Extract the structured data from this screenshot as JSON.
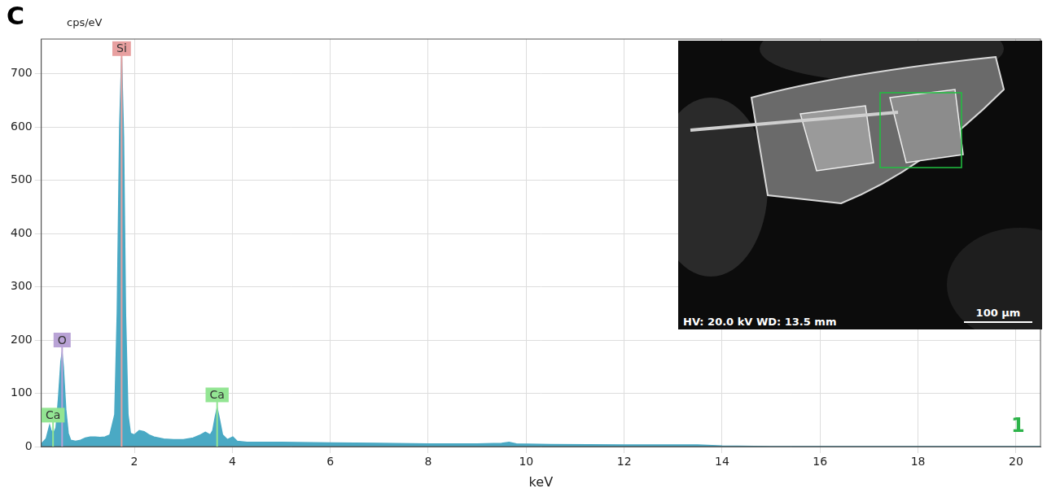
{
  "chart_data": {
    "type": "line",
    "panel_label": "C",
    "y_label": "cps/eV",
    "x_label": "keV",
    "corner_label": "1",
    "color": "#4aa9c4",
    "x": [
      0.1,
      0.2,
      0.27,
      0.3,
      0.35,
      0.4,
      0.45,
      0.5,
      0.525,
      0.55,
      0.6,
      0.65,
      0.7,
      0.8,
      0.9,
      1.0,
      1.1,
      1.2,
      1.3,
      1.4,
      1.5,
      1.6,
      1.65,
      1.7,
      1.74,
      1.78,
      1.82,
      1.87,
      1.92,
      2.0,
      2.1,
      2.2,
      2.3,
      2.4,
      2.6,
      2.8,
      3.0,
      3.2,
      3.35,
      3.45,
      3.55,
      3.6,
      3.65,
      3.69,
      3.73,
      3.8,
      3.9,
      4.01,
      4.1,
      4.3,
      5,
      6,
      7,
      8,
      9,
      9.5,
      9.65,
      9.8,
      10.5,
      12,
      13.5,
      14,
      15,
      20.5
    ],
    "values": [
      5,
      15,
      40,
      30,
      25,
      35,
      90,
      160,
      175,
      150,
      70,
      25,
      12,
      10,
      12,
      16,
      18,
      18,
      17,
      18,
      22,
      60,
      250,
      600,
      730,
      580,
      250,
      60,
      25,
      22,
      30,
      28,
      22,
      18,
      14,
      13,
      13,
      16,
      22,
      27,
      22,
      30,
      55,
      72,
      55,
      22,
      13,
      18,
      10,
      8,
      8,
      7,
      6,
      5,
      5,
      6,
      8,
      5,
      4,
      3,
      3,
      1,
      0,
      0
    ],
    "xlim": [
      0.1,
      20.5
    ],
    "xticks": [
      2,
      4,
      6,
      8,
      10,
      12,
      14,
      16,
      18,
      20
    ],
    "ylim": [
      0,
      765
    ],
    "yticks": [
      0,
      100,
      200,
      300,
      400,
      500,
      600,
      700
    ],
    "grid": true,
    "annotations": [
      {
        "text": "Si",
        "x": 1.74,
        "y": 747,
        "color": "#e8a0a0"
      },
      {
        "text": "O",
        "x": 0.525,
        "y": 200,
        "color": "#b9a3d6"
      },
      {
        "text": "Ca",
        "x": 3.69,
        "y": 97,
        "color": "#93e593"
      },
      {
        "text": "Ca",
        "x": 0.34,
        "y": 59,
        "color": "#93e593"
      }
    ],
    "inset": {
      "info": "HV: 20.0 kV  WD: 13.5 mm",
      "scale_bar": "100 µm"
    }
  }
}
